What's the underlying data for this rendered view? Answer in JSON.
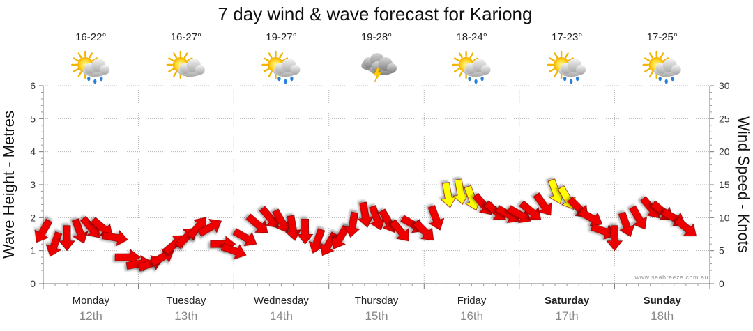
{
  "chart_data": {
    "type": "line",
    "title": "7 day wind & wave forecast for Kariong",
    "ylabel_left": "Wave Height - Metres",
    "ylabel_right": "Wind Speed - Knots",
    "ylim_left": [
      0,
      6
    ],
    "ylim_right": [
      0,
      30
    ],
    "yticks_left": [
      "0",
      "1",
      "2",
      "3",
      "4",
      "5",
      "6"
    ],
    "yticks_right": [
      "0",
      "5",
      "10",
      "15",
      "20",
      "25",
      "30"
    ],
    "grid": true,
    "credit": "www.seabreeze.com.au",
    "days": [
      {
        "name": "Monday",
        "date": "12th",
        "temp": "16-22°",
        "icon": "sun-rain-cloud-icon",
        "weekend": false
      },
      {
        "name": "Tuesday",
        "date": "13th",
        "temp": "16-27°",
        "icon": "sun-cloud-icon",
        "weekend": false
      },
      {
        "name": "Wednesday",
        "date": "14th",
        "temp": "19-27°",
        "icon": "sun-rain-cloud-icon",
        "weekend": false
      },
      {
        "name": "Thursday",
        "date": "15th",
        "temp": "19-28°",
        "icon": "thunderstorm-icon",
        "weekend": false
      },
      {
        "name": "Friday",
        "date": "16th",
        "temp": "18-24°",
        "icon": "sun-rain-cloud-icon",
        "weekend": false
      },
      {
        "name": "Saturday",
        "date": "17th",
        "temp": "17-23°",
        "icon": "sun-rain-cloud-icon",
        "weekend": true
      },
      {
        "name": "Sunday",
        "date": "18th",
        "temp": "17-25°",
        "icon": "sun-rain-cloud-icon",
        "weekend": true
      }
    ],
    "series": [
      {
        "name": "Wind Speed (knots)",
        "color_normal": "#ee0000",
        "color_strong": "#ffff00",
        "strong_threshold": 13,
        "x_days": [
          0,
          0.12,
          0.25,
          0.38,
          0.5,
          0.62,
          0.75,
          0.88,
          1,
          1.12,
          1.25,
          1.38,
          1.5,
          1.62,
          1.75,
          1.88,
          2,
          2.12,
          2.25,
          2.38,
          2.5,
          2.62,
          2.75,
          2.88,
          3,
          3.12,
          3.25,
          3.38,
          3.5,
          3.62,
          3.75,
          3.88,
          4,
          4.12,
          4.25,
          4.38,
          4.5,
          4.62,
          4.75,
          4.88,
          5,
          5.12,
          5.25,
          5.38,
          5.5,
          5.62,
          5.75,
          5.88,
          6,
          6.12,
          6.25,
          6.38,
          6.5,
          6.62,
          6.75
        ],
        "values": [
          8,
          6,
          7,
          8,
          8.5,
          8.5,
          7,
          4,
          3,
          3,
          4,
          6,
          7,
          8.5,
          8.5,
          6,
          5,
          7,
          9,
          10,
          9.5,
          8.5,
          8,
          6.5,
          6,
          7,
          9,
          10.5,
          10,
          9.5,
          8,
          9,
          8,
          10,
          13.5,
          14,
          13,
          12,
          11,
          10.5,
          10.5,
          11,
          12,
          14,
          13,
          11.5,
          10,
          8,
          7,
          9,
          10,
          11.5,
          11,
          10,
          8.5
        ],
        "angles_deg": [
          210,
          200,
          180,
          160,
          140,
          130,
          100,
          90,
          80,
          70,
          60,
          50,
          45,
          40,
          60,
          90,
          110,
          120,
          130,
          140,
          150,
          170,
          180,
          200,
          210,
          210,
          190,
          170,
          160,
          150,
          140,
          120,
          135,
          160,
          170,
          170,
          160,
          140,
          130,
          120,
          120,
          130,
          145,
          160,
          150,
          135,
          120,
          110,
          180,
          160,
          150,
          140,
          130,
          120,
          130
        ]
      }
    ]
  }
}
